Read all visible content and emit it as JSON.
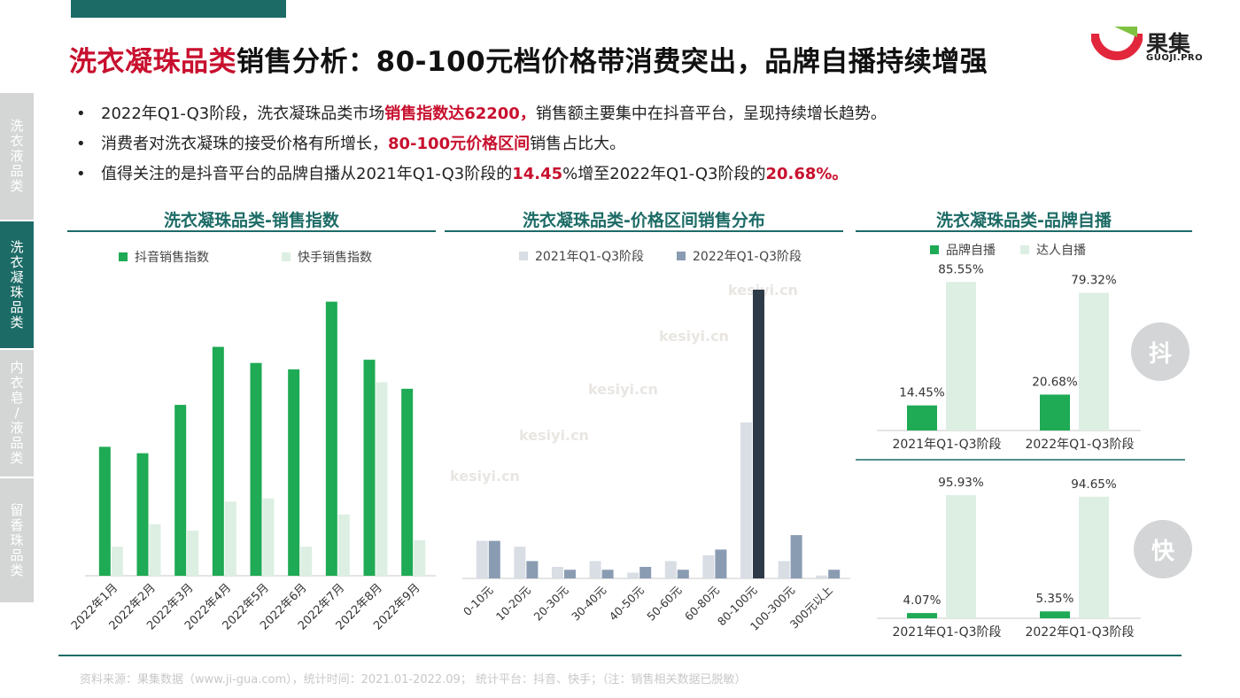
{
  "header": {
    "title_red": "洗衣凝珠品类",
    "title_rest": "销售分析：80-100元档价格带消费突出，品牌自播持续增强"
  },
  "logo": {
    "name": "果集",
    "domain": "GUOJI.PRO"
  },
  "sidebar": {
    "items": [
      {
        "label": "洗衣液品类",
        "active": false
      },
      {
        "label": "洗衣凝珠品类",
        "active": true
      },
      {
        "label": "内衣皂/液品类",
        "active": false
      },
      {
        "label": "留香珠品类",
        "active": false
      }
    ]
  },
  "bullets": [
    {
      "pre": "2022年Q1-Q3阶段，洗衣凝珠品类市场",
      "hl": "销售指数达62200，",
      "post": "销售额主要集中在抖音平台，呈现持续增长趋势。"
    },
    {
      "pre": "消费者对洗衣凝珠的接受价格有所增长，",
      "hl": "80-100元价格区间",
      "post": "销售占比大。"
    },
    {
      "pre": "值得关注的是抖音平台的品牌自播从2021年Q1-Q3阶段的",
      "hl": "14.45",
      "mid": "%增至2022年Q1-Q3阶段的",
      "hl2": "20.68%。"
    }
  ],
  "watermark": "kesiyi.cn",
  "charts": {
    "sales_title": "洗衣凝珠品类-销售指数",
    "price_title": "洗衣凝珠品类-价格区间销售分布",
    "brand_title": "洗衣凝珠品类-品牌自播"
  },
  "colors": {
    "douyin": "#1faa55",
    "kuaishou": "#dcefe2",
    "y2021": "#d9dde4",
    "y2022": "#8a9cb2",
    "y2022_peak": "#2f3a48",
    "teal": "#1c6b66",
    "red": "#c8102e"
  },
  "chart_data": [
    {
      "type": "bar",
      "title": "洗衣凝珠品类-销售指数",
      "categories": [
        "2022年1月",
        "2022年2月",
        "2022年3月",
        "2022年4月",
        "2022年5月",
        "2022年6月",
        "2022年7月",
        "2022年8月",
        "2022年9月"
      ],
      "series": [
        {
          "name": "抖音销售指数",
          "values": [
            40,
            38,
            53,
            71,
            66,
            64,
            85,
            67,
            58
          ]
        },
        {
          "name": "快手销售指数",
          "values": [
            9,
            16,
            14,
            23,
            24,
            9,
            19,
            60,
            11
          ]
        }
      ],
      "ylim": [
        0,
        100
      ]
    },
    {
      "type": "bar",
      "title": "洗衣凝珠品类-价格区间销售分布",
      "categories": [
        "0-10元",
        "10-20元",
        "20-30元",
        "30-40元",
        "40-50元",
        "50-60元",
        "60-80元",
        "80-100元",
        "100-300元",
        "300元以上"
      ],
      "series": [
        {
          "name": "2021年Q1-Q3阶段",
          "values": [
            13,
            11,
            4,
            6,
            2,
            6,
            8,
            54,
            6,
            1
          ]
        },
        {
          "name": "2022年Q1-Q3阶段",
          "values": [
            13,
            6,
            3,
            3,
            4,
            3,
            10,
            100,
            15,
            3
          ]
        }
      ],
      "ylim": [
        0,
        100
      ]
    },
    {
      "type": "bar",
      "title": "洗衣凝珠品类-品牌自播",
      "platform": "抖",
      "categories": [
        "2021年Q1-Q3阶段",
        "2022年Q1-Q3阶段"
      ],
      "series": [
        {
          "name": "品牌自播",
          "values": [
            14.45,
            20.68
          ],
          "labels": [
            "14.45%",
            "20.68%"
          ]
        },
        {
          "name": "达人自播",
          "values": [
            85.55,
            79.32
          ],
          "labels": [
            "85.55%",
            "79.32%"
          ]
        }
      ],
      "ylim": [
        0,
        100
      ]
    },
    {
      "type": "bar",
      "platform": "快",
      "categories": [
        "2021年Q1-Q3阶段",
        "2022年Q1-Q3阶段"
      ],
      "series": [
        {
          "name": "品牌自播",
          "values": [
            4.07,
            5.35
          ],
          "labels": [
            "4.07%",
            "5.35%"
          ]
        },
        {
          "name": "达人自播",
          "values": [
            95.93,
            94.65
          ],
          "labels": [
            "95.93%",
            "94.65%"
          ]
        }
      ],
      "ylim": [
        0,
        100
      ]
    }
  ],
  "footer": {
    "source": "资料来源：果集数据（www.ji-gua.com），统计时间：2021.01-2022.09；    统计平台：抖音、快手；（注：销售相关数据已脱敏）"
  }
}
